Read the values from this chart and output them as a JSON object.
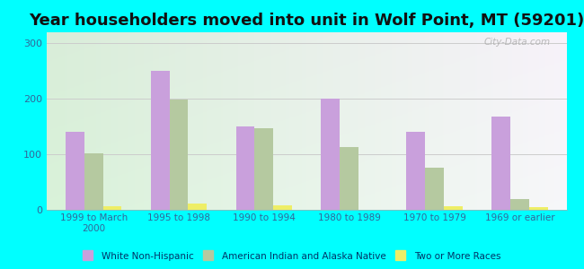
{
  "title": "Year householders moved into unit in Wolf Point, MT (59201)",
  "categories": [
    "1999 to March\n2000",
    "1995 to 1998",
    "1990 to 1994",
    "1980 to 1989",
    "1970 to 1979",
    "1969 or earlier"
  ],
  "white_non_hispanic": [
    140,
    250,
    150,
    200,
    140,
    168
  ],
  "american_indian": [
    102,
    198,
    147,
    113,
    76,
    20
  ],
  "two_or_more": [
    7,
    12,
    8,
    0,
    6,
    5
  ],
  "bar_color_white": "#c9a0dc",
  "bar_color_indian": "#b5c9a0",
  "bar_color_two": "#eeee66",
  "background_color": "#00ffff",
  "ylim": [
    0,
    320
  ],
  "yticks": [
    0,
    100,
    200,
    300
  ],
  "title_fontsize": 13,
  "watermark": "City-Data.com",
  "legend_labels": [
    "White Non-Hispanic",
    "American Indian and Alaska Native",
    "Two or More Races"
  ]
}
